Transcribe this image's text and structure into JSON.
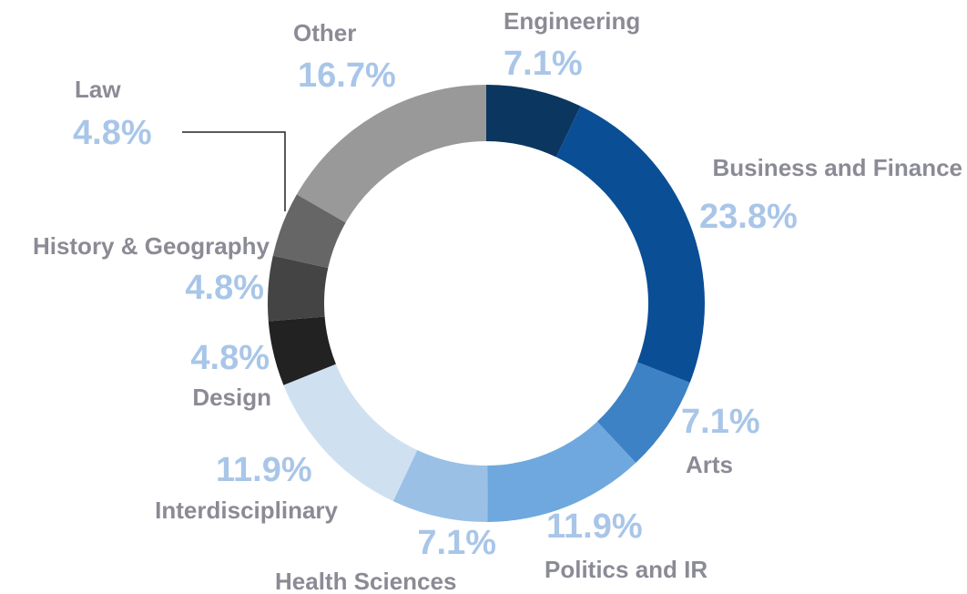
{
  "chart_data": {
    "type": "donut",
    "categories": [
      "Engineering",
      "Business and Finance",
      "Arts",
      "Politics and IR",
      "Health Sciences",
      "Interdisciplinary",
      "Design",
      "History & Geography",
      "Law",
      "Other"
    ],
    "values": [
      7.1,
      23.8,
      7.1,
      11.9,
      7.1,
      11.9,
      4.8,
      4.8,
      4.8,
      16.7
    ],
    "value_labels": [
      "7.1%",
      "23.8%",
      "7.1%",
      "11.9%",
      "7.1%",
      "11.9%",
      "4.8%",
      "4.8%",
      "4.8%",
      "16.7%"
    ],
    "colors": [
      "#0b3660",
      "#0a4f95",
      "#3d82c4",
      "#6ea8de",
      "#9bc0e6",
      "#cfe0f1",
      "#222222",
      "#444444",
      "#666666",
      "#999999"
    ]
  }
}
